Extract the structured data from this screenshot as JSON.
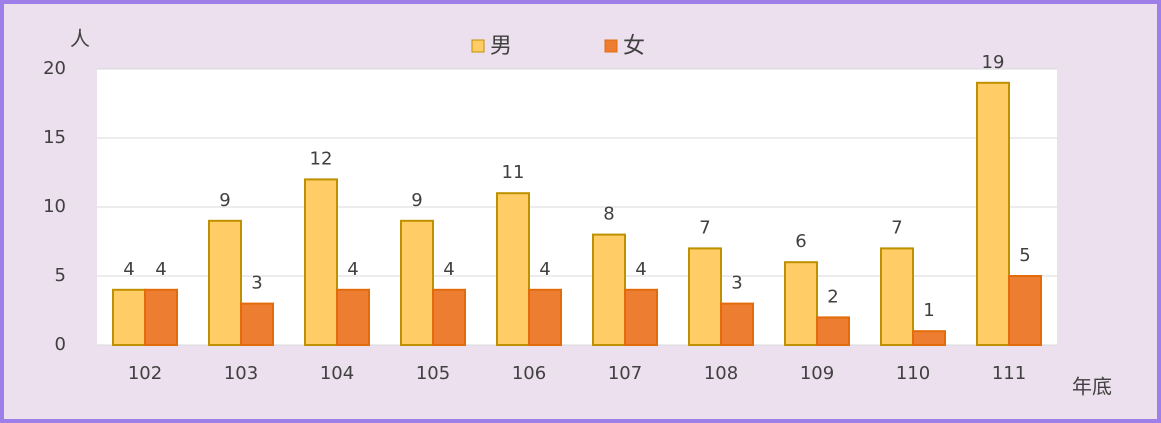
{
  "chart_data": {
    "type": "bar",
    "y_label": "人",
    "x_label": "年底",
    "categories": [
      "102",
      "103",
      "104",
      "105",
      "106",
      "107",
      "108",
      "109",
      "110",
      "111"
    ],
    "series": [
      {
        "name": "男",
        "color": "#ffcc66",
        "stroke": "#bf9000",
        "values": [
          4,
          9,
          12,
          9,
          11,
          8,
          7,
          6,
          7,
          19
        ]
      },
      {
        "name": "女",
        "color": "#ed7d31",
        "stroke": "#e36c0a",
        "values": [
          4,
          3,
          4,
          4,
          4,
          4,
          3,
          2,
          1,
          5
        ]
      }
    ],
    "ylim": [
      0,
      20
    ],
    "yticks": [
      0,
      5,
      10,
      15,
      20
    ],
    "grid": true,
    "legend": "top"
  }
}
